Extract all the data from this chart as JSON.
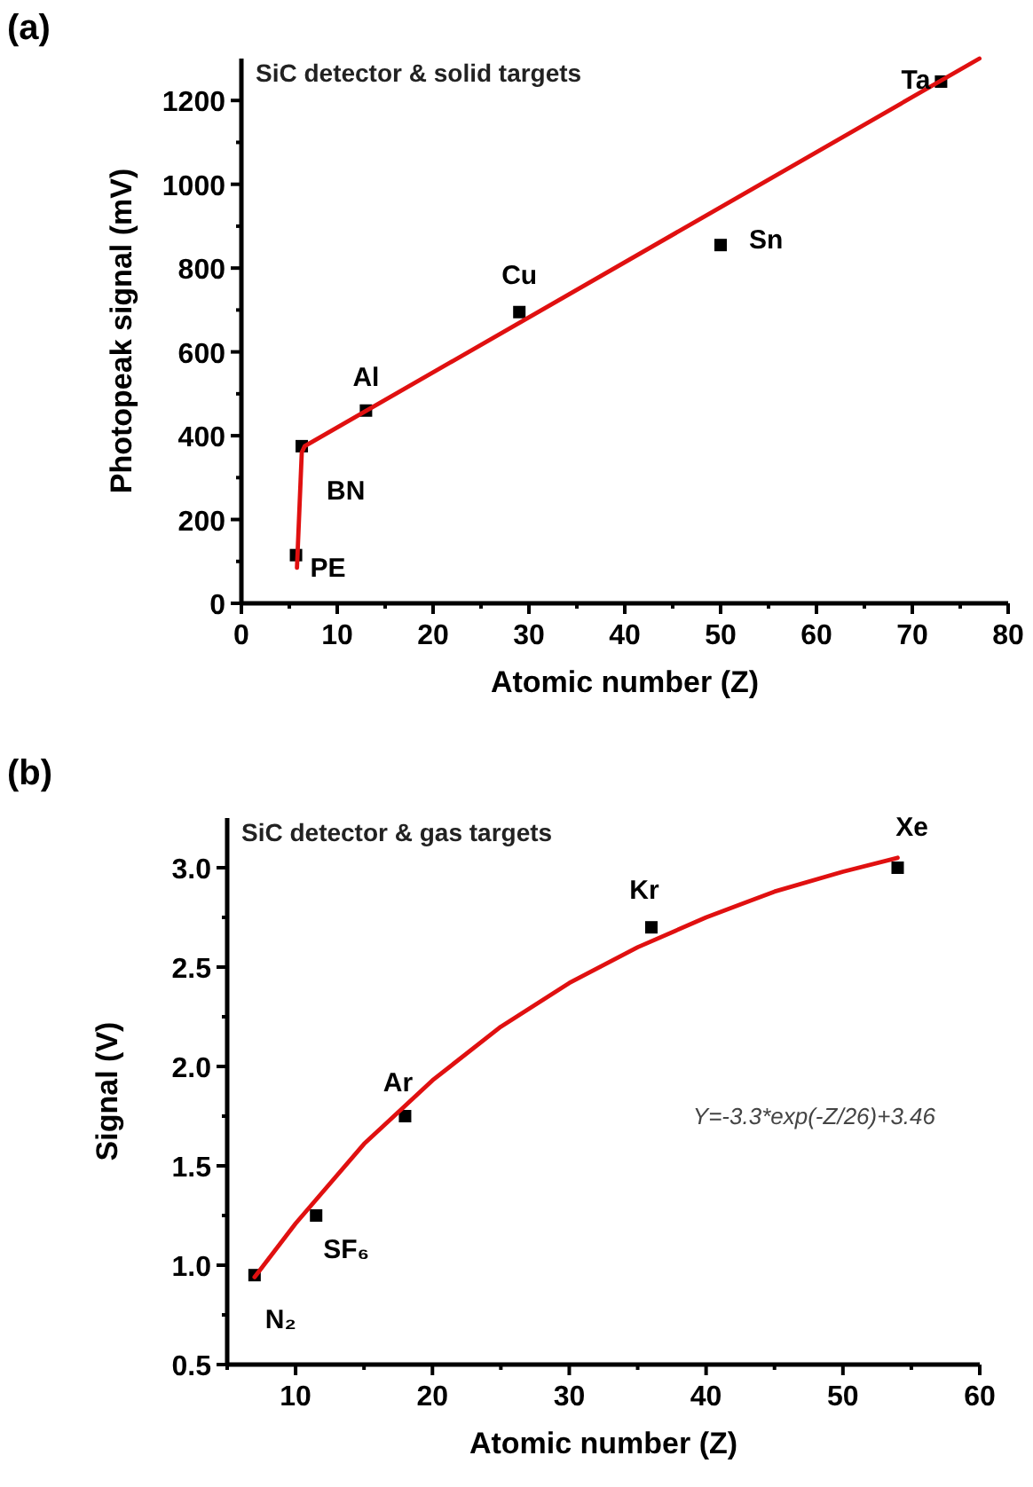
{
  "chart_data": [
    {
      "type": "scatter",
      "title": "SiC detector & solid targets",
      "xlabel": "Atomic number (Z)",
      "ylabel": "Photopeak signal (mV)",
      "xlim": [
        0,
        80
      ],
      "ylim": [
        0,
        1300
      ],
      "xticks": [
        0,
        {
          "value": 5,
          "label": null
        },
        10,
        {
          "value": 15,
          "label": null
        },
        20,
        {
          "value": 25,
          "label": null
        },
        30,
        {
          "value": 35,
          "label": null
        },
        40,
        {
          "value": 45,
          "label": null
        },
        50,
        {
          "value": 55,
          "label": null
        },
        60,
        {
          "value": 65,
          "label": null
        },
        70,
        {
          "value": 75,
          "label": null
        },
        80
      ],
      "yticks": [
        0,
        {
          "value": 100,
          "label": null
        },
        200,
        {
          "value": 300,
          "label": null
        },
        400,
        {
          "value": 500,
          "label": null
        },
        600,
        {
          "value": 700,
          "label": null
        },
        800,
        {
          "value": 900,
          "label": null
        },
        1000,
        {
          "value": 1100,
          "label": null
        },
        1200
      ],
      "marker": "square",
      "grid": false,
      "series": [
        {
          "color": "#000000",
          "x": [
            5.7,
            6.3,
            13,
            29,
            50,
            73
          ],
          "values": [
            115,
            375,
            460,
            695,
            855,
            1245
          ]
        },
        {
          "type": "line",
          "color": "#e01010",
          "line_style": "solid",
          "marker": "none",
          "x": [
            5.8,
            6.3,
            6.6,
            77
          ],
          "values": [
            85,
            360,
            375,
            1300
          ]
        }
      ],
      "annotations": [
        "(a)",
        {
          "text": "PE",
          "x": 5.7,
          "y": 115
        },
        {
          "text": "BN",
          "x": 6.3,
          "y": 375
        },
        {
          "text": "Al",
          "x": 13,
          "y": 460
        },
        {
          "text": "Cu",
          "x": 29,
          "y": 695
        },
        {
          "text": "Sn",
          "x": 50,
          "y": 855
        },
        {
          "text": "Ta",
          "x": 73,
          "y": 1245
        }
      ]
    },
    {
      "type": "scatter",
      "title": "SiC detector & gas targets",
      "xlabel": "Atomic number (Z)",
      "ylabel": "Signal (V)",
      "xlim": [
        5,
        60
      ],
      "ylim": [
        0.5,
        3.25
      ],
      "xticks": [
        {
          "value": 5,
          "label": null
        },
        10,
        {
          "value": 15,
          "label": null
        },
        20,
        {
          "value": 25,
          "label": null
        },
        30,
        {
          "value": 35,
          "label": null
        },
        40,
        {
          "value": 45,
          "label": null
        },
        50,
        {
          "value": 55,
          "label": null
        },
        60
      ],
      "yticks": [
        {
          "value": 0.5,
          "label": "0.5"
        },
        {
          "value": 0.75,
          "label": null
        },
        {
          "value": 1,
          "label": "1.0"
        },
        {
          "value": 1.25,
          "label": null
        },
        {
          "value": 1.5,
          "label": "1.5"
        },
        {
          "value": 1.75,
          "label": null
        },
        {
          "value": 2,
          "label": "2.0"
        },
        {
          "value": 2.25,
          "label": null
        },
        {
          "value": 2.5,
          "label": "2.5"
        },
        {
          "value": 2.75,
          "label": null
        },
        {
          "value": 3,
          "label": "3.0"
        }
      ],
      "marker": "square",
      "grid": false,
      "series": [
        {
          "color": "#000000",
          "x": [
            7,
            11.5,
            18,
            36,
            54
          ],
          "values": [
            0.95,
            1.25,
            1.75,
            2.7,
            3.0
          ]
        },
        {
          "type": "line",
          "color": "#e01010",
          "line_style": "solid",
          "marker": "none",
          "x": [
            7,
            10,
            15,
            20,
            25,
            30,
            35,
            40,
            45,
            50,
            54
          ],
          "values": [
            0.94,
            1.21,
            1.61,
            1.93,
            2.2,
            2.42,
            2.6,
            2.75,
            2.88,
            2.98,
            3.05
          ]
        }
      ],
      "annotations": [
        "(b)",
        "Y=-3.3*exp(-Z/26)+3.46",
        {
          "text": "N₂",
          "x": 7,
          "y": 0.95
        },
        {
          "text": "SF₆",
          "x": 11.5,
          "y": 1.25
        },
        {
          "text": "Ar",
          "x": 18,
          "y": 1.75
        },
        {
          "text": "Kr",
          "x": 36,
          "y": 2.7
        },
        {
          "text": "Xe",
          "x": 54,
          "y": 3.0
        }
      ]
    }
  ]
}
